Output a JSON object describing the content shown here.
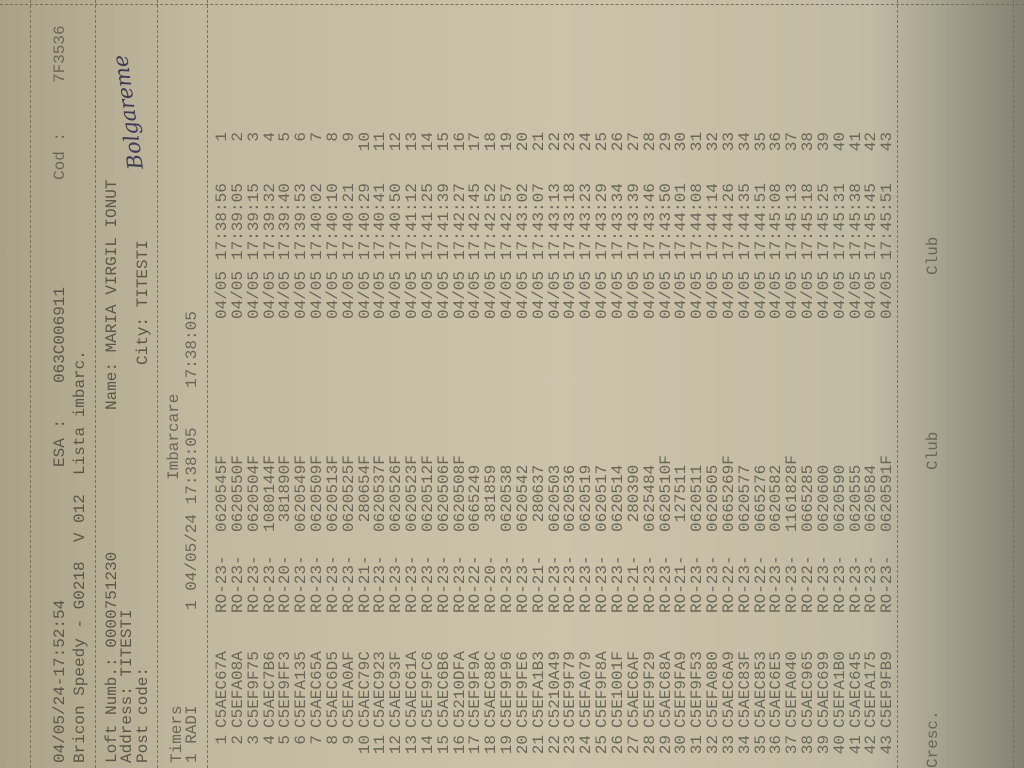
{
  "header": {
    "print_datetime": "04/05/24-17:52:54",
    "esa_label": "ESA :",
    "esa_value": "063C006911",
    "cod_label": "Cod :",
    "cod_value": "7F3536",
    "line2": "Bricon Speedy - G0218  V 012  Lista imbarc."
  },
  "owner": {
    "loft": "Loft Numb.: 0000751230",
    "name": "Name: MARIA VIRGIL IONUT",
    "address": "Address: TITESTI",
    "post_code": "Post code:",
    "city": "City: TITESTI",
    "signature": "Bolgareme"
  },
  "timers": {
    "label": "Timers",
    "imbarcare": "Imbarcare",
    "line": "1 RADI",
    "line_values": "1 04/05/24 17:38:05",
    "line_time2": "17:38:05"
  },
  "rows": [
    {
      "i": "1",
      "ring": "C5AEC67A",
      "ro": "RO-23-",
      "code": "0620545F",
      "date": "04/05",
      "time": "17:38:56",
      "rank": "1"
    },
    {
      "i": "2",
      "ring": "C5EFA08A",
      "ro": "RO-23-",
      "code": "0620550F",
      "date": "04/05",
      "time": "17:39:05",
      "rank": "2"
    },
    {
      "i": "3",
      "ring": "C5EF9F75",
      "ro": "RO-23-",
      "code": "0620504F",
      "date": "04/05",
      "time": "17:39:15",
      "rank": "3"
    },
    {
      "i": "4",
      "ring": "C5AEC7B6",
      "ro": "RO-23-",
      "code": "1080144F",
      "date": "04/05",
      "time": "17:39:32",
      "rank": "4"
    },
    {
      "i": "5",
      "ring": "C5EF9FF3",
      "ro": "RO-20-",
      "code": " 381890F",
      "date": "04/05",
      "time": "17:39:40",
      "rank": "5"
    },
    {
      "i": "6",
      "ring": "C5EFA135",
      "ro": "RO-23-",
      "code": "0620549F",
      "date": "04/05",
      "time": "17:39:53",
      "rank": "6"
    },
    {
      "i": "7",
      "ring": "C5AEC65A",
      "ro": "RO-23-",
      "code": "0620509F",
      "date": "04/05",
      "time": "17:40:02",
      "rank": "7"
    },
    {
      "i": "8",
      "ring": "C5AEC6D5",
      "ro": "RO-23-",
      "code": "0620513F",
      "date": "04/05",
      "time": "17:40:10",
      "rank": "8"
    },
    {
      "i": "9",
      "ring": "C5EFA0AF",
      "ro": "RO-23-",
      "code": "0620525F",
      "date": "04/05",
      "time": "17:40:21",
      "rank": "9"
    },
    {
      "i": "10",
      "ring": "C5AEC79C",
      "ro": "RO-21-",
      "code": " 280654F",
      "date": "04/05",
      "time": "17:40:29",
      "rank": "10"
    },
    {
      "i": "11",
      "ring": "C5AEC923",
      "ro": "RO-23-",
      "code": "0620537F",
      "date": "04/05",
      "time": "17:40:41",
      "rank": "11"
    },
    {
      "i": "12",
      "ring": "C5AEC93F",
      "ro": "RO-23-",
      "code": "0620526F",
      "date": "04/05",
      "time": "17:40:50",
      "rank": "12"
    },
    {
      "i": "13",
      "ring": "C5AEC61A",
      "ro": "RO-23-",
      "code": "0620523F",
      "date": "04/05",
      "time": "17:41:12",
      "rank": "13"
    },
    {
      "i": "14",
      "ring": "C5EF9FC6",
      "ro": "RO-23-",
      "code": "0620512F",
      "date": "04/05",
      "time": "17:41:25",
      "rank": "14"
    },
    {
      "i": "15",
      "ring": "C5AEC6B6",
      "ro": "RO-23-",
      "code": "0620506F",
      "date": "04/05",
      "time": "17:41:39",
      "rank": "15"
    },
    {
      "i": "16",
      "ring": "C5210DFA",
      "ro": "RO-23-",
      "code": "0620508F",
      "date": "04/05",
      "time": "17:42:27",
      "rank": "16"
    },
    {
      "i": "17",
      "ring": "C5EF9F9A",
      "ro": "RO-22-",
      "code": "0665249",
      "date": "04/05",
      "time": "17:42:45",
      "rank": "17"
    },
    {
      "i": "18",
      "ring": "C5AEC88C",
      "ro": "RO-20-",
      "code": " 381859",
      "date": "04/05",
      "time": "17:42:52",
      "rank": "18"
    },
    {
      "i": "19",
      "ring": "C5EF9F96",
      "ro": "RO-23-",
      "code": "0620538",
      "date": "04/05",
      "time": "17:42:57",
      "rank": "19"
    },
    {
      "i": "20",
      "ring": "C5EF9FE6",
      "ro": "RO-23-",
      "code": "0620542",
      "date": "04/05",
      "time": "17:43:02",
      "rank": "20"
    },
    {
      "i": "21",
      "ring": "C5EFA1B3",
      "ro": "RO-21-",
      "code": " 280637",
      "date": "04/05",
      "time": "17:43:07",
      "rank": "21"
    },
    {
      "i": "22",
      "ring": "C5210A49",
      "ro": "RO-23-",
      "code": "0620503",
      "date": "04/05",
      "time": "17:43:13",
      "rank": "22"
    },
    {
      "i": "23",
      "ring": "C5EF9F79",
      "ro": "RO-23-",
      "code": "0620536",
      "date": "04/05",
      "time": "17:43:18",
      "rank": "23"
    },
    {
      "i": "24",
      "ring": "C5EFA079",
      "ro": "RO-23-",
      "code": "0620519",
      "date": "04/05",
      "time": "17:43:23",
      "rank": "24"
    },
    {
      "i": "25",
      "ring": "C5EF9F8A",
      "ro": "RO-23-",
      "code": "0620517",
      "date": "04/05",
      "time": "17:43:29",
      "rank": "25"
    },
    {
      "i": "26",
      "ring": "C5E1001F",
      "ro": "RO-23-",
      "code": "0620514",
      "date": "04/05",
      "time": "17:43:34",
      "rank": "26"
    },
    {
      "i": "27",
      "ring": "C5AEC6AF",
      "ro": "RO-21-",
      "code": " 280390",
      "date": "04/05",
      "time": "17:43:39",
      "rank": "27"
    },
    {
      "i": "28",
      "ring": "C5EF9F29",
      "ro": "RO-23-",
      "code": "0625484",
      "date": "04/05",
      "time": "17:43:46",
      "rank": "28"
    },
    {
      "i": "29",
      "ring": "C5AEC68A",
      "ro": "RO-23-",
      "code": "0620510F",
      "date": "04/05",
      "time": "17:43:50",
      "rank": "29"
    },
    {
      "i": "30",
      "ring": "C5EF9FA9",
      "ro": "RO-21-",
      "code": " 127511",
      "date": "04/05",
      "time": "17:44:01",
      "rank": "30"
    },
    {
      "i": "31",
      "ring": "C5EF9F53",
      "ro": "RO-23-",
      "code": "0620511",
      "date": "04/05",
      "time": "17:44:08",
      "rank": "31"
    },
    {
      "i": "32",
      "ring": "C5EFA080",
      "ro": "RO-23-",
      "code": "0620505",
      "date": "04/05",
      "time": "17:44:14",
      "rank": "32"
    },
    {
      "i": "33",
      "ring": "C5AEC6A9",
      "ro": "RO-22-",
      "code": "0665269F",
      "date": "04/05",
      "time": "17:44:26",
      "rank": "33"
    },
    {
      "i": "34",
      "ring": "C5AEC83F",
      "ro": "RO-23-",
      "code": "0620577",
      "date": "04/05",
      "time": "17:44:35",
      "rank": "34"
    },
    {
      "i": "35",
      "ring": "C5AEC853",
      "ro": "RO-22-",
      "code": "0665276",
      "date": "04/05",
      "time": "17:44:51",
      "rank": "35"
    },
    {
      "i": "36",
      "ring": "C5AEC6E5",
      "ro": "RO-23-",
      "code": "0620582",
      "date": "04/05",
      "time": "17:45:08",
      "rank": "36"
    },
    {
      "i": "37",
      "ring": "C5EFA040",
      "ro": "RO-23-",
      "code": "1161828F",
      "date": "04/05",
      "time": "17:45:13",
      "rank": "37"
    },
    {
      "i": "38",
      "ring": "C5AEC965",
      "ro": "RO-22-",
      "code": "0665285",
      "date": "04/05",
      "time": "17:45:18",
      "rank": "38"
    },
    {
      "i": "39",
      "ring": "C5AEC699",
      "ro": "RO-23-",
      "code": "0620600",
      "date": "04/05",
      "time": "17:45:25",
      "rank": "39"
    },
    {
      "i": "40",
      "ring": "C5EFA1B0",
      "ro": "RO-23-",
      "code": "0620590",
      "date": "04/05",
      "time": "17:45:31",
      "rank": "40"
    },
    {
      "i": "41",
      "ring": "C5AEC645",
      "ro": "RO-23-",
      "code": "0620555",
      "date": "04/05",
      "time": "17:45:38",
      "rank": "41"
    },
    {
      "i": "42",
      "ring": "C5EFA175",
      "ro": "RO-23-",
      "code": "0620584",
      "date": "04/05",
      "time": "17:45:45",
      "rank": "42"
    },
    {
      "i": "43",
      "ring": "C5EF9FB9",
      "ro": "RO-23-",
      "code": "0620591F",
      "date": "04/05",
      "time": "17:45:51",
      "rank": "43"
    }
  ],
  "footer": {
    "cresc": "Cresc.",
    "club_left": "Club",
    "club_right": "Club"
  }
}
